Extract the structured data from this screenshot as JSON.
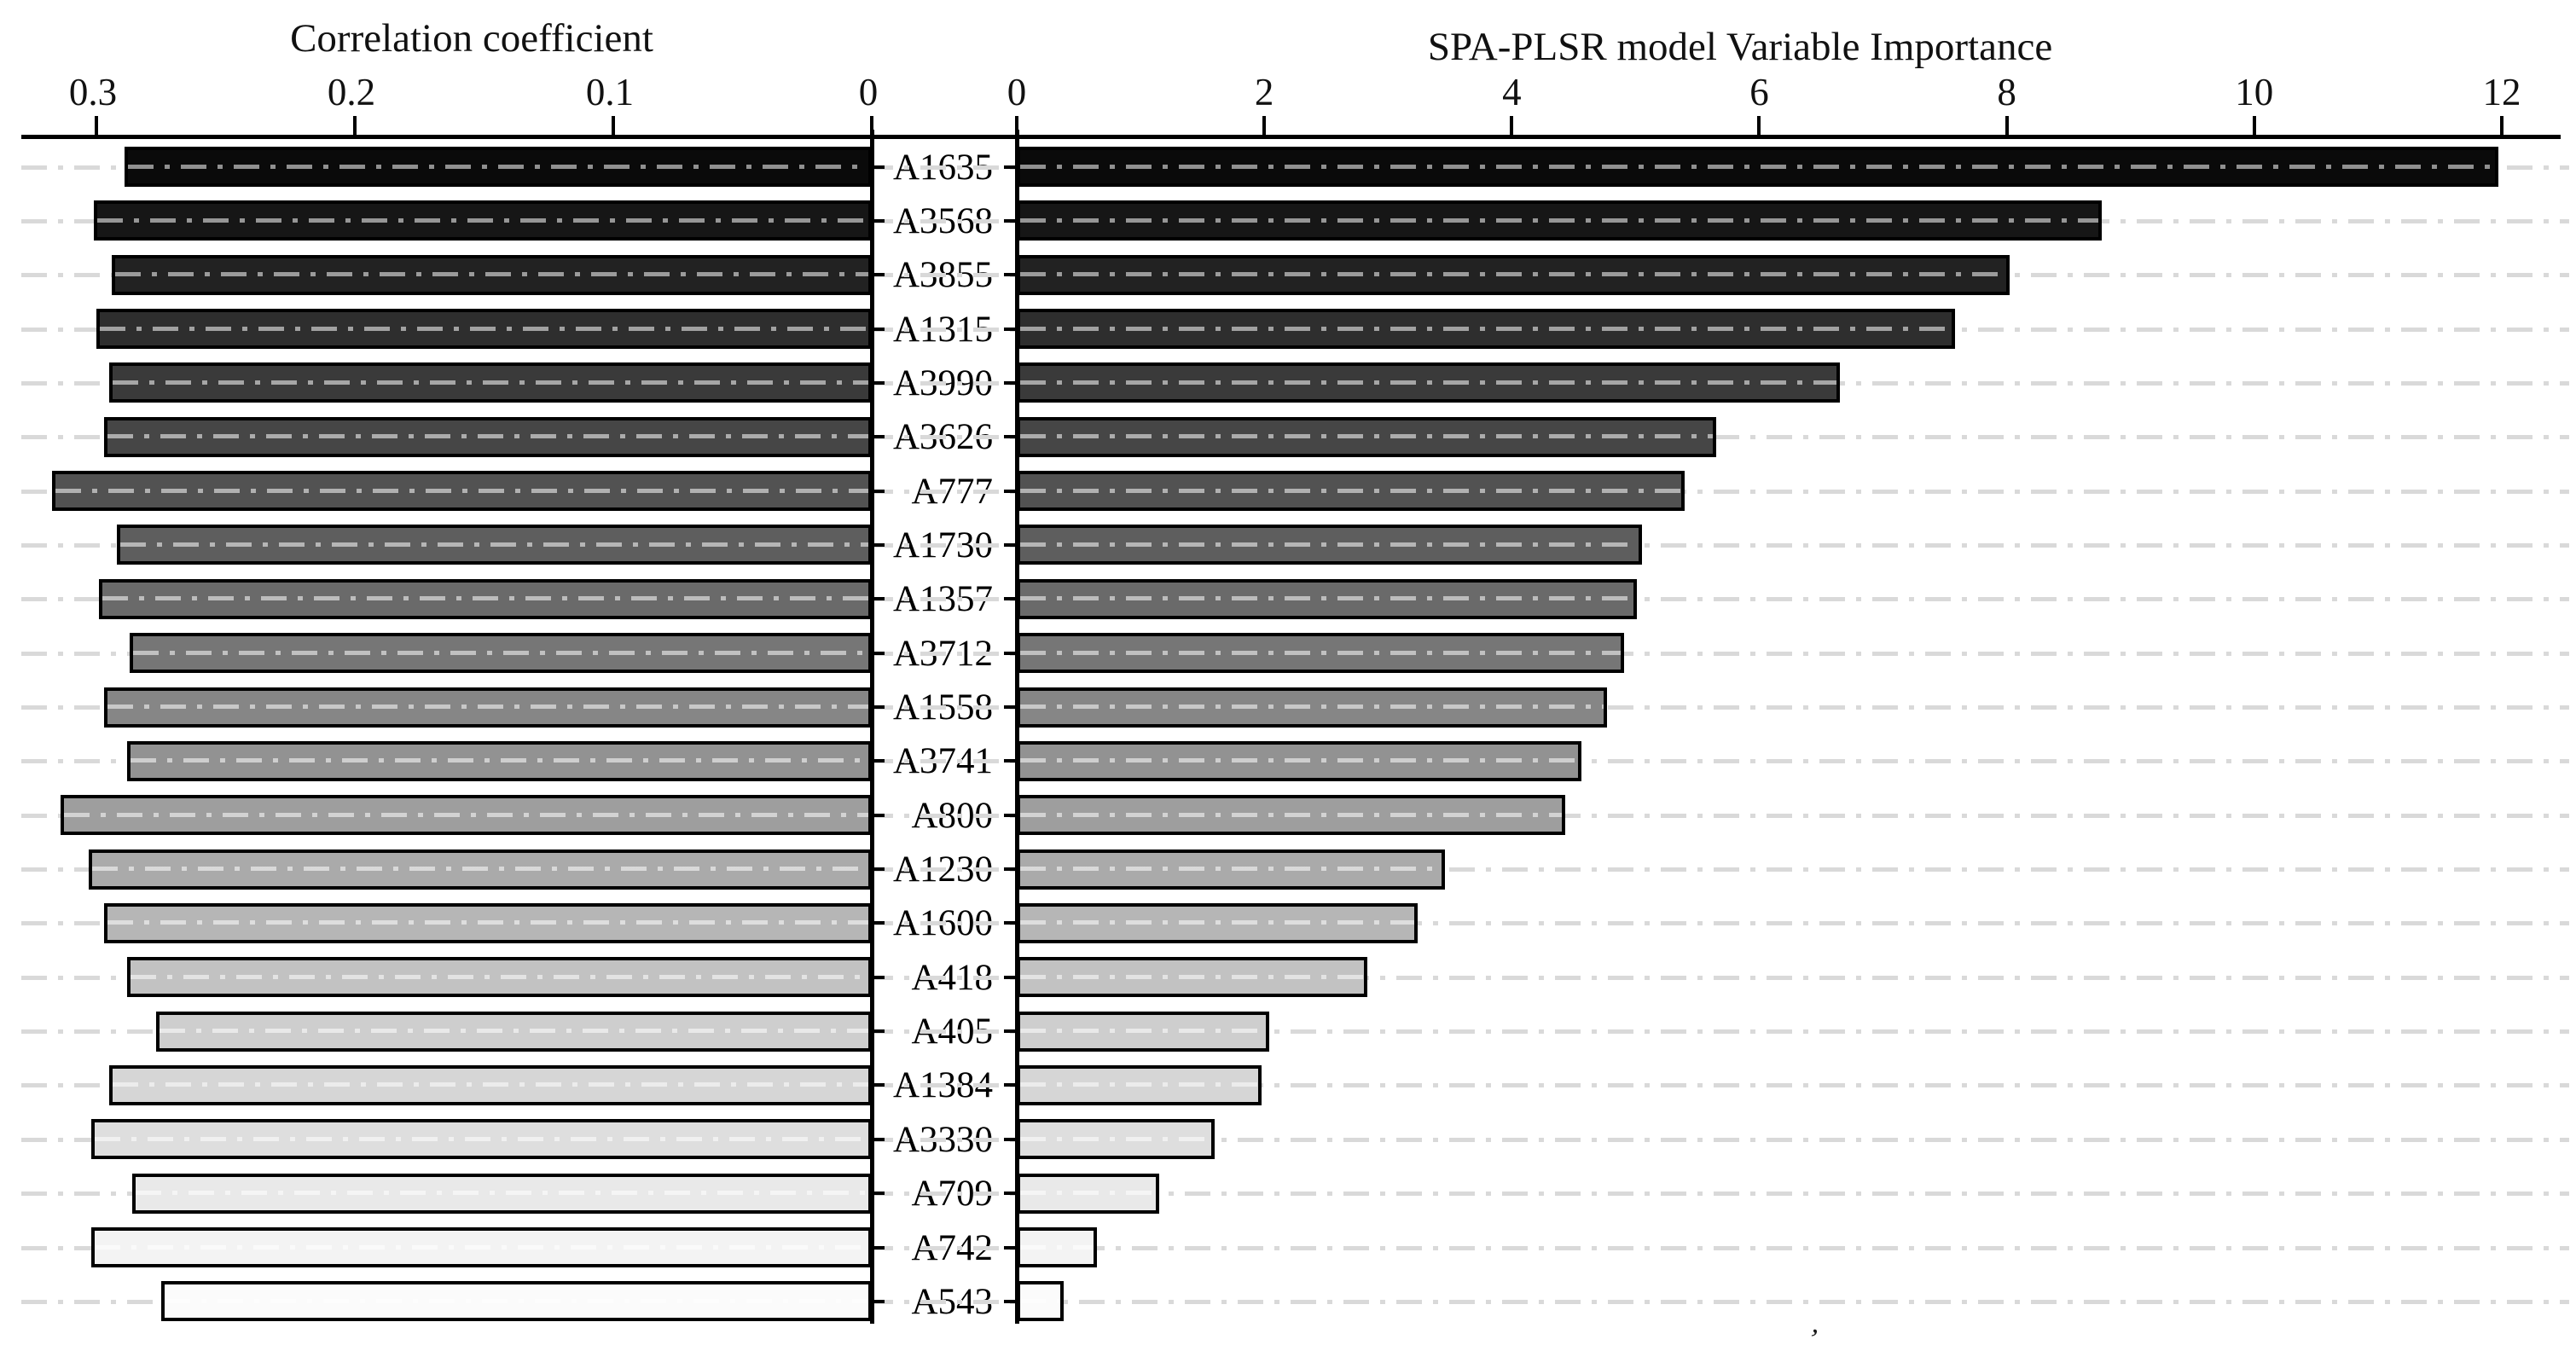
{
  "figure": {
    "background": "#ffffff",
    "stray_mark": "’"
  },
  "chart_data": {
    "type": "bar",
    "layout": "diverging horizontal bars (tornado chart) with shared category axis in the center; left panel axis is reversed",
    "categories": [
      "A1635",
      "A3568",
      "A3855",
      "A1315",
      "A3990",
      "A3626",
      "A777",
      "A1730",
      "A1357",
      "A3712",
      "A1558",
      "A3741",
      "A800",
      "A1230",
      "A1600",
      "A418",
      "A405",
      "A1384",
      "A3330",
      "A709",
      "A742",
      "A543"
    ],
    "series": [
      {
        "name": "Correlation coefficient",
        "side": "left",
        "axis_tick_labels": [
          "0.3",
          "0.2",
          "0.1",
          "0"
        ],
        "axis_range": [
          0,
          0.329
        ],
        "values": [
          0.289,
          0.301,
          0.294,
          0.3,
          0.295,
          0.297,
          0.317,
          0.292,
          0.299,
          0.287,
          0.297,
          0.288,
          0.314,
          0.303,
          0.297,
          0.288,
          0.277,
          0.295,
          0.302,
          0.286,
          0.302,
          0.275
        ]
      },
      {
        "name": "SPA-PLSR model Variable Importance",
        "side": "right",
        "axis_tick_labels": [
          "0",
          "2",
          "4",
          "6",
          "8",
          "10",
          "12"
        ],
        "axis_range": [
          0,
          12.55
        ],
        "values": [
          11.97,
          8.77,
          8.02,
          7.58,
          6.65,
          5.65,
          5.4,
          5.05,
          5.01,
          4.91,
          4.77,
          4.56,
          4.43,
          3.46,
          3.24,
          2.83,
          2.04,
          1.98,
          1.6,
          1.15,
          0.65,
          0.38
        ]
      }
    ],
    "bar_fill_colors": [
      "#0a0a0a",
      "#161616",
      "#222222",
      "#2e2e2e",
      "#3a3a3a",
      "#464646",
      "#525252",
      "#5e5e5e",
      "#6a6a6a",
      "#767676",
      "#868686",
      "#929292",
      "#9e9e9e",
      "#aaaaaa",
      "#b6b6b6",
      "#c2c2c2",
      "#cecece",
      "#d6d6d6",
      "#dedede",
      "#e9e9e9",
      "#f3f3f3",
      "#fbfbfb"
    ],
    "bar_border_color": "#000000",
    "gridline_color": "#d9d9d9",
    "gridline_style": "dash-dot, one per category row, full figure width",
    "axis_color": "#000000",
    "legend": "none",
    "grid": "horizontal only"
  }
}
